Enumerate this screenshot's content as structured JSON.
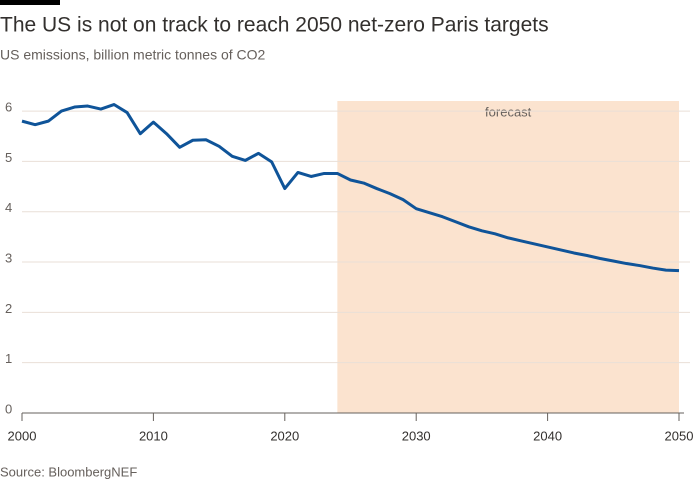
{
  "chart_data": {
    "type": "line",
    "title": "The US is not on track to reach 2050 net-zero Paris targets",
    "subtitle": "US emissions, billion metric tonnes of CO2",
    "source": "Source: BloombergNEF",
    "x": [
      2000,
      2001,
      2002,
      2003,
      2004,
      2005,
      2006,
      2007,
      2008,
      2009,
      2010,
      2011,
      2012,
      2013,
      2014,
      2015,
      2016,
      2017,
      2018,
      2019,
      2020,
      2021,
      2022,
      2023,
      2024,
      2025,
      2026,
      2027,
      2028,
      2029,
      2030,
      2031,
      2032,
      2033,
      2034,
      2035,
      2036,
      2037,
      2038,
      2039,
      2040,
      2041,
      2042,
      2043,
      2044,
      2045,
      2046,
      2047,
      2048,
      2049,
      2050
    ],
    "values": [
      5.8,
      5.73,
      5.8,
      6.0,
      6.08,
      6.1,
      6.04,
      6.13,
      5.97,
      5.55,
      5.78,
      5.55,
      5.28,
      5.42,
      5.43,
      5.3,
      5.1,
      5.02,
      5.16,
      4.99,
      4.46,
      4.78,
      4.7,
      4.76,
      4.76,
      4.63,
      4.57,
      4.46,
      4.36,
      4.24,
      4.06,
      3.98,
      3.9,
      3.8,
      3.7,
      3.62,
      3.56,
      3.48,
      3.42,
      3.36,
      3.3,
      3.24,
      3.18,
      3.13,
      3.07,
      3.02,
      2.97,
      2.93,
      2.88,
      2.84,
      2.83
    ],
    "color": "#0f5499",
    "shaded_region": {
      "x": [
        2024,
        2050
      ],
      "label": "forecast",
      "color": "#fbe3cf"
    },
    "xlim": [
      2000,
      2050
    ],
    "xticks": [
      2000,
      2010,
      2020,
      2030,
      2040,
      2050
    ],
    "ylim": [
      0,
      6.2
    ],
    "yticks": [
      0,
      1,
      2,
      3,
      4,
      5,
      6
    ],
    "grid": true
  }
}
